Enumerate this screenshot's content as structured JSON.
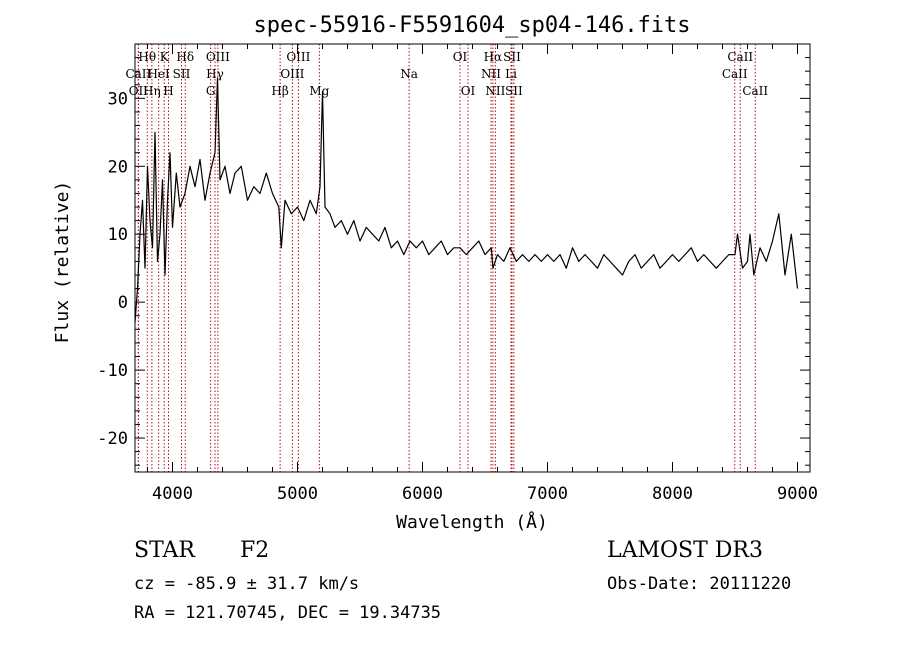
{
  "chart_data": {
    "type": "line",
    "title": "spec-55916-F5591604_sp04-146.fits",
    "xlabel": "Wavelength (Å)",
    "ylabel": "Flux (relative)",
    "xlim": [
      3700,
      9100
    ],
    "ylim": [
      -25,
      38
    ],
    "xticks": [
      4000,
      5000,
      6000,
      7000,
      8000,
      9000
    ],
    "yticks": [
      -20,
      -10,
      0,
      10,
      20,
      30
    ],
    "series": [
      {
        "name": "flux",
        "x": [
          3700,
          3720,
          3740,
          3760,
          3780,
          3800,
          3820,
          3840,
          3860,
          3880,
          3900,
          3920,
          3940,
          3960,
          3980,
          4000,
          4030,
          4060,
          4100,
          4140,
          4180,
          4220,
          4260,
          4300,
          4340,
          4360,
          4380,
          4420,
          4460,
          4500,
          4550,
          4600,
          4650,
          4700,
          4750,
          4800,
          4850,
          4870,
          4900,
          4950,
          5000,
          5050,
          5100,
          5150,
          5180,
          5200,
          5220,
          5260,
          5300,
          5350,
          5400,
          5450,
          5500,
          5550,
          5600,
          5650,
          5700,
          5750,
          5800,
          5850,
          5900,
          5950,
          6000,
          6050,
          6100,
          6150,
          6200,
          6250,
          6300,
          6350,
          6400,
          6450,
          6500,
          6550,
          6563,
          6600,
          6650,
          6700,
          6750,
          6800,
          6850,
          6900,
          6950,
          7000,
          7050,
          7100,
          7150,
          7200,
          7250,
          7300,
          7350,
          7400,
          7450,
          7500,
          7550,
          7600,
          7650,
          7700,
          7750,
          7800,
          7850,
          7900,
          7950,
          8000,
          8050,
          8100,
          8150,
          8200,
          8250,
          8300,
          8350,
          8400,
          8450,
          8500,
          8520,
          8560,
          8600,
          8620,
          8650,
          8700,
          8750,
          8800,
          8850,
          8900,
          8950,
          9000
        ],
        "y": [
          -3,
          2,
          10,
          15,
          5,
          20,
          12,
          8,
          25,
          6,
          10,
          18,
          4,
          15,
          22,
          11,
          19,
          14,
          16,
          20,
          17,
          21,
          15,
          19,
          22,
          33,
          18,
          20,
          16,
          19,
          20,
          15,
          17,
          16,
          19,
          16,
          14,
          8,
          15,
          13,
          14,
          12,
          15,
          13,
          17,
          31,
          14,
          13,
          11,
          12,
          10,
          12,
          9,
          11,
          10,
          9,
          11,
          8,
          9,
          7,
          9,
          8,
          9,
          7,
          8,
          9,
          7,
          8,
          8,
          7,
          8,
          9,
          7,
          8,
          5,
          7,
          6,
          8,
          6,
          7,
          6,
          7,
          6,
          7,
          6,
          7,
          5,
          8,
          6,
          7,
          6,
          5,
          7,
          6,
          5,
          4,
          6,
          7,
          5,
          6,
          7,
          5,
          6,
          7,
          6,
          7,
          8,
          6,
          7,
          6,
          5,
          6,
          7,
          7,
          10,
          5,
          6,
          10,
          4,
          8,
          6,
          9,
          13,
          4,
          10,
          2
        ]
      }
    ],
    "lines": [
      {
        "name": "Hθ",
        "wl": 3798,
        "row": 1
      },
      {
        "name": "CaII",
        "wl": 3727,
        "row": 2
      },
      {
        "name": "OII",
        "wl": 3727,
        "row": 3
      },
      {
        "name": "Hη",
        "wl": 3835,
        "row": 3
      },
      {
        "name": "K",
        "wl": 3934,
        "row": 1
      },
      {
        "name": "HeI",
        "wl": 3889,
        "row": 2
      },
      {
        "name": "H",
        "wl": 3968,
        "row": 3
      },
      {
        "name": "SII",
        "wl": 4072,
        "row": 2
      },
      {
        "name": "Hδ",
        "wl": 4102,
        "row": 1
      },
      {
        "name": "OIII",
        "wl": 4363,
        "row": 1
      },
      {
        "name": "Hγ",
        "wl": 4340,
        "row": 2
      },
      {
        "name": "G",
        "wl": 4305,
        "row": 3
      },
      {
        "name": "OIII",
        "wl": 5007,
        "row": 1
      },
      {
        "name": "OIII",
        "wl": 4959,
        "row": 2
      },
      {
        "name": "Hβ",
        "wl": 4861,
        "row": 3
      },
      {
        "name": "Mg",
        "wl": 5175,
        "row": 3
      },
      {
        "name": "Na",
        "wl": 5893,
        "row": 2
      },
      {
        "name": "OI",
        "wl": 6300,
        "row": 1
      },
      {
        "name": "OI",
        "wl": 6364,
        "row": 3
      },
      {
        "name": "Hα",
        "wl": 6563,
        "row": 1
      },
      {
        "name": "SII",
        "wl": 6716,
        "row": 1
      },
      {
        "name": "NII",
        "wl": 6548,
        "row": 2
      },
      {
        "name": "Li",
        "wl": 6708,
        "row": 2
      },
      {
        "name": "NII",
        "wl": 6583,
        "row": 3
      },
      {
        "name": "SII",
        "wl": 6731,
        "row": 3
      },
      {
        "name": "CaII",
        "wl": 8542,
        "row": 1
      },
      {
        "name": "CaII",
        "wl": 8498,
        "row": 2
      },
      {
        "name": "CaII",
        "wl": 8662,
        "row": 3
      }
    ]
  },
  "info": {
    "object_class": "STAR",
    "subclass": "F2",
    "survey": "LAMOST DR3",
    "velocity": "cz = -85.9 ± 31.7 km/s",
    "obs_date": "Obs-Date: 20111220",
    "coords": "RA = 121.70745, DEC =  19.34735"
  },
  "colors": {
    "spectrum": "#000000",
    "line_marker": "#b01010"
  }
}
